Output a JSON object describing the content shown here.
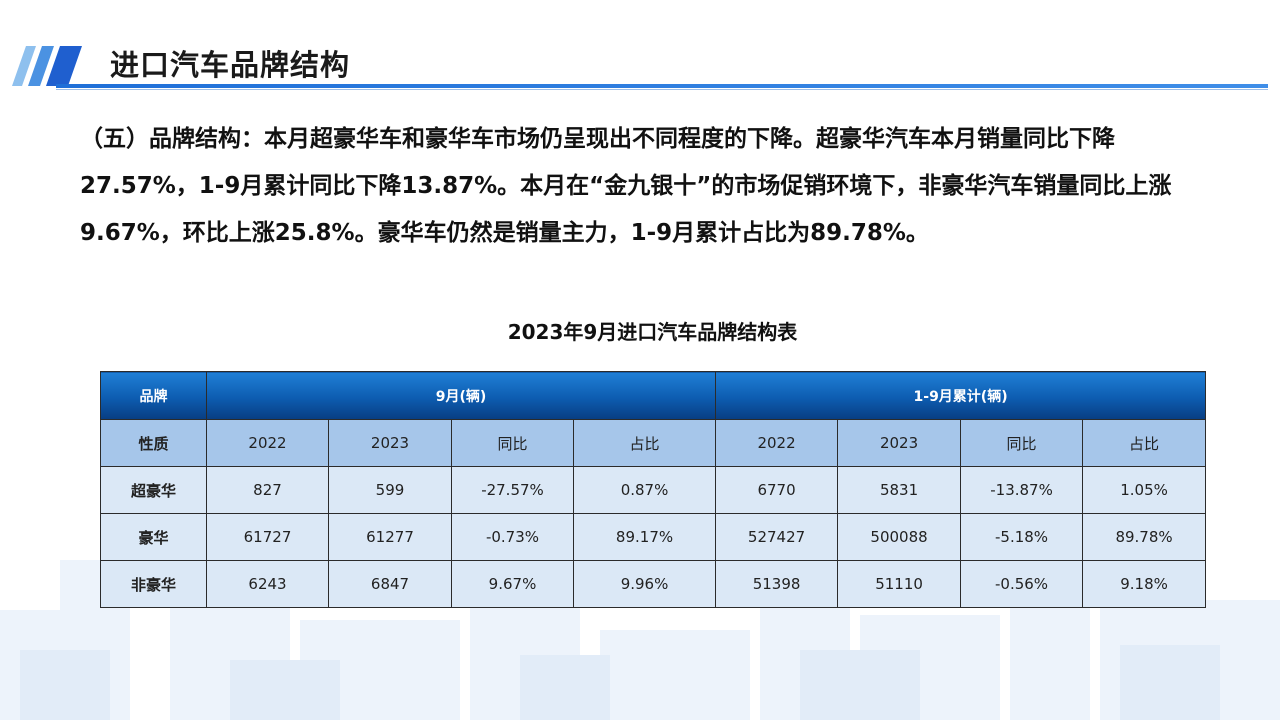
{
  "page": {
    "title": "进口汽车品牌结构",
    "summary": "（五）品牌结构：本月超豪华车和豪华车市场仍呈现出不同程度的下降。超豪华汽车本月销量同比下降27.57%，1-9月累计同比下降13.87%。本月在“金九银十”的市场促销环境下，非豪华汽车销量同比上涨9.67%，环比上涨25.8%。豪华车仍然是销量主力，1-9月累计占比为89.78%。"
  },
  "colors": {
    "accent": "#1f6fd8",
    "header_dark": "#083d82",
    "header_light": "#a6c6ea",
    "row_fill": "#dbe8f6"
  },
  "table": {
    "title": "2023年9月进口汽车品牌结构表",
    "header": {
      "brand": "品牌",
      "month_group": "9月(辆)",
      "ytd_group": "1-9月累计(辆)"
    },
    "subheader": [
      "性质",
      "2022",
      "2023",
      "同比",
      "占比",
      "2022",
      "2023",
      "同比",
      "占比"
    ],
    "rows": [
      [
        "超豪华",
        "827",
        "599",
        "-27.57%",
        "0.87%",
        "6770",
        "5831",
        "-13.87%",
        "1.05%"
      ],
      [
        "豪华",
        "61727",
        "61277",
        "-0.73%",
        "89.17%",
        "527427",
        "500088",
        "-5.18%",
        "89.78%"
      ],
      [
        "非豪华",
        "6243",
        "6847",
        "9.67%",
        "9.96%",
        "51398",
        "51110",
        "-0.56%",
        "9.18%"
      ]
    ]
  }
}
